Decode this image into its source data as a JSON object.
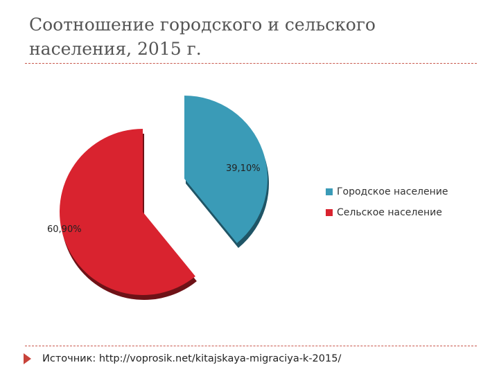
{
  "slide": {
    "title": "Соотношение городского и сельского населения, 2015 г.",
    "source": "Источник: http://voprosik.net/kitajskaya-migraciya-k-2015/"
  },
  "chart_data": {
    "type": "pie",
    "exploded": true,
    "legend_position": "right",
    "slices": [
      {
        "name": "Городское население",
        "value": 39.1,
        "label": "39,10%",
        "color": "#3a9bb7",
        "shadow": "#1f5566"
      },
      {
        "name": "Сельское население",
        "value": 60.9,
        "label": "60,90%",
        "color": "#d9232f",
        "shadow": "#6e1217"
      }
    ]
  }
}
